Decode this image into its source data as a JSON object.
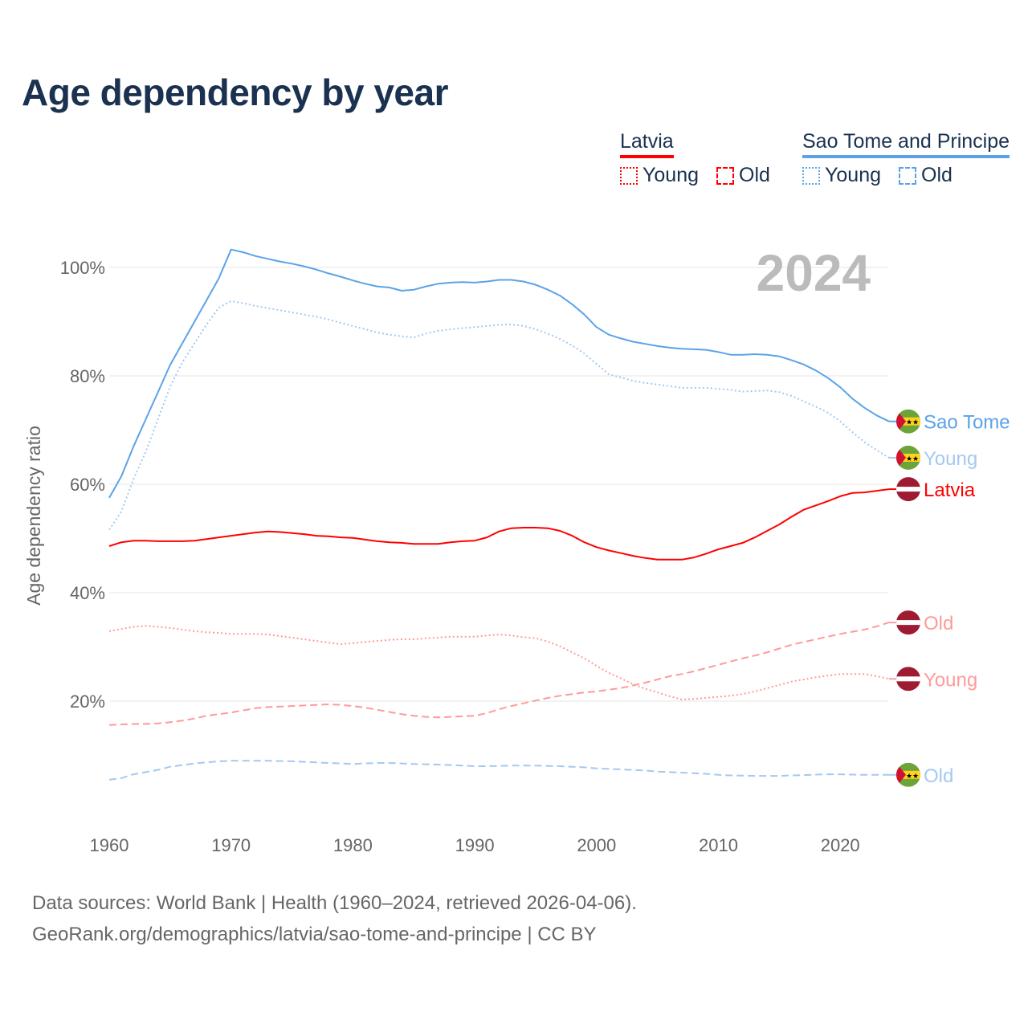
{
  "title": "Age dependency by year",
  "legend": {
    "groups": [
      {
        "name": "Latvia",
        "color": "#ff0000",
        "light": "#ff9a9a",
        "young": "Young",
        "old": "Old"
      },
      {
        "name": "Sao Tome and Principe",
        "color": "#5ba3e8",
        "light": "#a3c9f1",
        "young": "Young",
        "old": "Old"
      }
    ]
  },
  "footer": {
    "line1": "Data sources: World Bank | Health (1960–2024, retrieved 2026-04-06).",
    "line2": "GeoRank.org/demographics/latvia/sao-tome-and-principe | CC BY"
  },
  "chart_data": {
    "type": "line",
    "title": "Age dependency by year",
    "xlabel": "",
    "ylabel": "Age dependency ratio",
    "year_label": "2024",
    "xlim": [
      1960,
      2024
    ],
    "ylim": [
      0,
      105
    ],
    "x_ticks": [
      1960,
      1970,
      1980,
      1990,
      2000,
      2010,
      2020
    ],
    "y_ticks": [
      20,
      40,
      60,
      80,
      100
    ],
    "y_tick_labels": [
      "20%",
      "40%",
      "60%",
      "80%",
      "100%"
    ],
    "grid": true,
    "start_year": 1960,
    "series": [
      {
        "name": "Sao Tome and Principe",
        "end_label": "Sao Tome",
        "country": "stp",
        "style": "solid",
        "color": "#5ba3e8",
        "values": [
          57.5,
          61.5,
          67,
          72,
          77,
          82,
          86,
          90,
          94,
          98,
          103.3,
          102.8,
          102.1,
          101.6,
          101.1,
          100.7,
          100.2,
          99.6,
          98.9,
          98.3,
          97.6,
          97,
          96.5,
          96.3,
          95.7,
          95.9,
          96.5,
          97,
          97.2,
          97.3,
          97.2,
          97.4,
          97.7,
          97.7,
          97.4,
          96.8,
          95.9,
          94.8,
          93.2,
          91.3,
          89.0,
          87.6,
          86.9,
          86.3,
          85.9,
          85.5,
          85.2,
          85,
          84.9,
          84.8,
          84.4,
          83.9,
          83.9,
          84,
          83.9,
          83.6,
          82.9,
          82.1,
          81,
          79.6,
          77.9,
          75.8,
          74.1,
          72.7,
          71.6
        ]
      },
      {
        "name": "Sao Tome and Principe Young",
        "end_label": "Young",
        "country": "stp",
        "style": "dotted",
        "color": "#a3c9f1",
        "values": [
          51.6,
          55,
          61,
          66,
          72,
          78,
          82.5,
          86,
          89.5,
          92.6,
          93.8,
          93.4,
          92.9,
          92.5,
          92.1,
          91.7,
          91.3,
          90.9,
          90.4,
          89.8,
          89.2,
          88.6,
          88,
          87.6,
          87.3,
          87.1,
          87.8,
          88.3,
          88.6,
          88.8,
          89,
          89.2,
          89.4,
          89.5,
          89.2,
          88.6,
          87.8,
          86.8,
          85.6,
          84.1,
          82.2,
          80.3,
          79.7,
          79.1,
          78.7,
          78.4,
          78.1,
          77.8,
          77.8,
          77.8,
          77.6,
          77.4,
          77.1,
          77.2,
          77.3,
          77.0,
          76.3,
          75.3,
          74.3,
          73.2,
          71.6,
          69.6,
          67.8,
          66.3,
          64.9
        ]
      },
      {
        "name": "Latvia",
        "end_label": "Latvia",
        "country": "lv",
        "style": "solid",
        "color": "#ff0000",
        "values": [
          48.6,
          49.3,
          49.6,
          49.6,
          49.5,
          49.5,
          49.5,
          49.6,
          49.9,
          50.2,
          50.5,
          50.8,
          51.1,
          51.3,
          51.2,
          51.0,
          50.8,
          50.5,
          50.4,
          50.2,
          50.1,
          49.8,
          49.5,
          49.3,
          49.2,
          49.0,
          49.0,
          49.0,
          49.3,
          49.5,
          49.6,
          50.2,
          51.3,
          51.9,
          52.0,
          52.0,
          51.9,
          51.4,
          50.5,
          49.3,
          48.4,
          47.8,
          47.3,
          46.8,
          46.4,
          46.1,
          46.1,
          46.1,
          46.5,
          47.2,
          48.0,
          48.6,
          49.2,
          50.2,
          51.4,
          52.6,
          54.0,
          55.3,
          56.1,
          56.9,
          57.8,
          58.4,
          58.5,
          58.8,
          59.1
        ]
      },
      {
        "name": "Latvia Old",
        "end_label": "Old",
        "country": "lv",
        "style": "dashed",
        "color": "#ff9a9a",
        "values": [
          15.6,
          15.7,
          15.8,
          15.8,
          15.9,
          16.1,
          16.4,
          16.8,
          17.3,
          17.6,
          17.9,
          18.3,
          18.7,
          18.9,
          19.0,
          19.1,
          19.2,
          19.3,
          19.4,
          19.3,
          19.1,
          18.8,
          18.4,
          18.0,
          17.6,
          17.3,
          17.1,
          17.0,
          17.1,
          17.2,
          17.3,
          17.8,
          18.5,
          19.1,
          19.6,
          20.1,
          20.6,
          21.0,
          21.3,
          21.6,
          21.8,
          22.1,
          22.4,
          22.9,
          23.4,
          24.0,
          24.6,
          25.0,
          25.5,
          26.1,
          26.7,
          27.3,
          27.9,
          28.4,
          29.0,
          29.7,
          30.4,
          30.9,
          31.4,
          31.9,
          32.4,
          32.8,
          33.2,
          33.8,
          34.5
        ]
      },
      {
        "name": "Latvia Young",
        "end_label": "Young",
        "country": "lv",
        "style": "dotted",
        "color": "#ff9a9a",
        "values": [
          32.9,
          33.3,
          33.7,
          33.9,
          33.7,
          33.5,
          33.2,
          32.9,
          32.7,
          32.6,
          32.4,
          32.4,
          32.4,
          32.3,
          32.0,
          31.7,
          31.4,
          31.1,
          30.8,
          30.5,
          30.7,
          30.9,
          31.1,
          31.3,
          31.4,
          31.4,
          31.6,
          31.7,
          31.9,
          31.9,
          31.9,
          32.1,
          32.3,
          32.1,
          31.8,
          31.6,
          31.0,
          30.1,
          29.0,
          27.9,
          26.5,
          25.2,
          24.2,
          23.1,
          22.3,
          21.6,
          20.9,
          20.3,
          20.4,
          20.6,
          20.8,
          21.0,
          21.3,
          21.8,
          22.4,
          23.0,
          23.6,
          24.0,
          24.4,
          24.7,
          25.0,
          25.0,
          25.0,
          24.6,
          24.1
        ]
      },
      {
        "name": "Sao Tome and Principe Old",
        "end_label": "Old",
        "country": "stp",
        "style": "dashed",
        "color": "#a3c9f1",
        "values": [
          5.5,
          5.8,
          6.5,
          6.9,
          7.3,
          7.9,
          8.2,
          8.5,
          8.7,
          8.9,
          9.0,
          9.0,
          9.0,
          9.0,
          8.95,
          8.9,
          8.8,
          8.7,
          8.6,
          8.5,
          8.4,
          8.5,
          8.6,
          8.6,
          8.5,
          8.4,
          8.35,
          8.3,
          8.2,
          8.1,
          8.0,
          8.0,
          8.05,
          8.1,
          8.1,
          8.1,
          8.05,
          8.0,
          7.9,
          7.8,
          7.6,
          7.5,
          7.4,
          7.3,
          7.2,
          7.0,
          6.9,
          6.8,
          6.7,
          6.6,
          6.4,
          6.3,
          6.25,
          6.2,
          6.2,
          6.2,
          6.3,
          6.35,
          6.45,
          6.5,
          6.5,
          6.45,
          6.4,
          6.4,
          6.4
        ]
      }
    ]
  }
}
